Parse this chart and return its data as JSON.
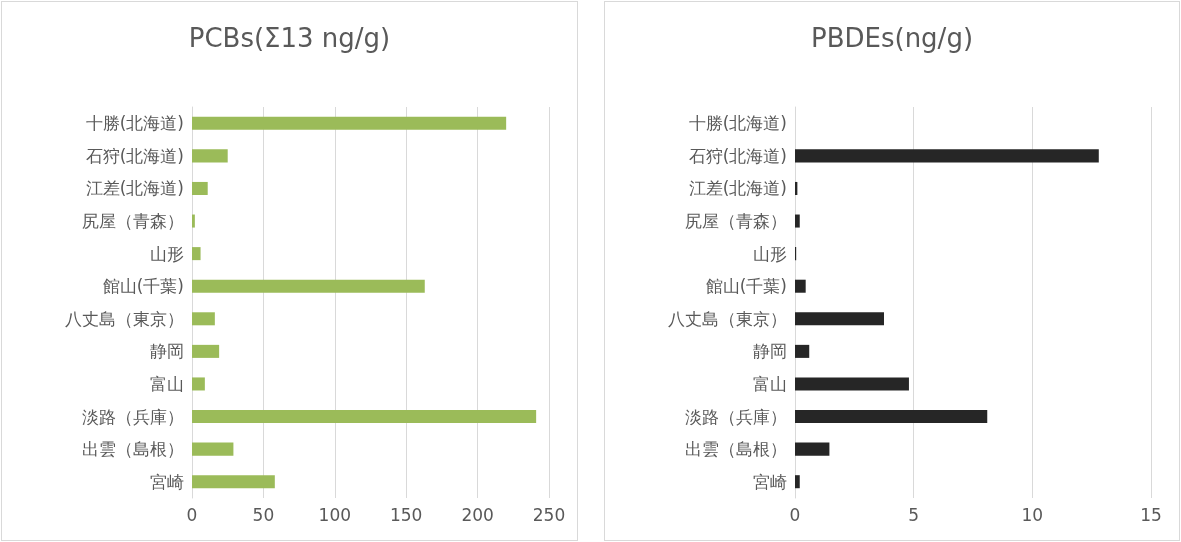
{
  "chart_data": [
    {
      "type": "bar",
      "orientation": "horizontal",
      "title": "PCBs(Σ13 ng/g)",
      "categories": [
        "十勝(北海道)",
        "石狩(北海道)",
        "江差(北海道)",
        "尻屋（青森）",
        "山形",
        "館山(千葉)",
        "八丈島（東京）",
        "静岡",
        "富山",
        "淡路（兵庫）",
        "出雲（島根）",
        "宮崎"
      ],
      "values": [
        220,
        25,
        11,
        2,
        6,
        163,
        16,
        19,
        9,
        241,
        29,
        58
      ],
      "color": "#9bbb59",
      "xlim": [
        0,
        250
      ],
      "xticks": [
        0,
        50,
        100,
        150,
        200,
        250
      ],
      "grid": "x"
    },
    {
      "type": "bar",
      "orientation": "horizontal",
      "title": "PBDEs(ng/g)",
      "categories": [
        "十勝(北海道)",
        "石狩(北海道)",
        "江差(北海道)",
        "尻屋（青森）",
        "山形",
        "館山(千葉)",
        "八丈島（東京）",
        "静岡",
        "富山",
        "淡路（兵庫）",
        "出雲（島根）",
        "宮崎"
      ],
      "values": [
        null,
        12.8,
        0.1,
        0.2,
        0.05,
        0.45,
        3.75,
        0.6,
        4.8,
        8.1,
        1.45,
        0.2
      ],
      "color": "#262626",
      "xlim": [
        0,
        15
      ],
      "xticks": [
        0,
        5,
        10,
        15
      ],
      "grid": "x"
    }
  ]
}
